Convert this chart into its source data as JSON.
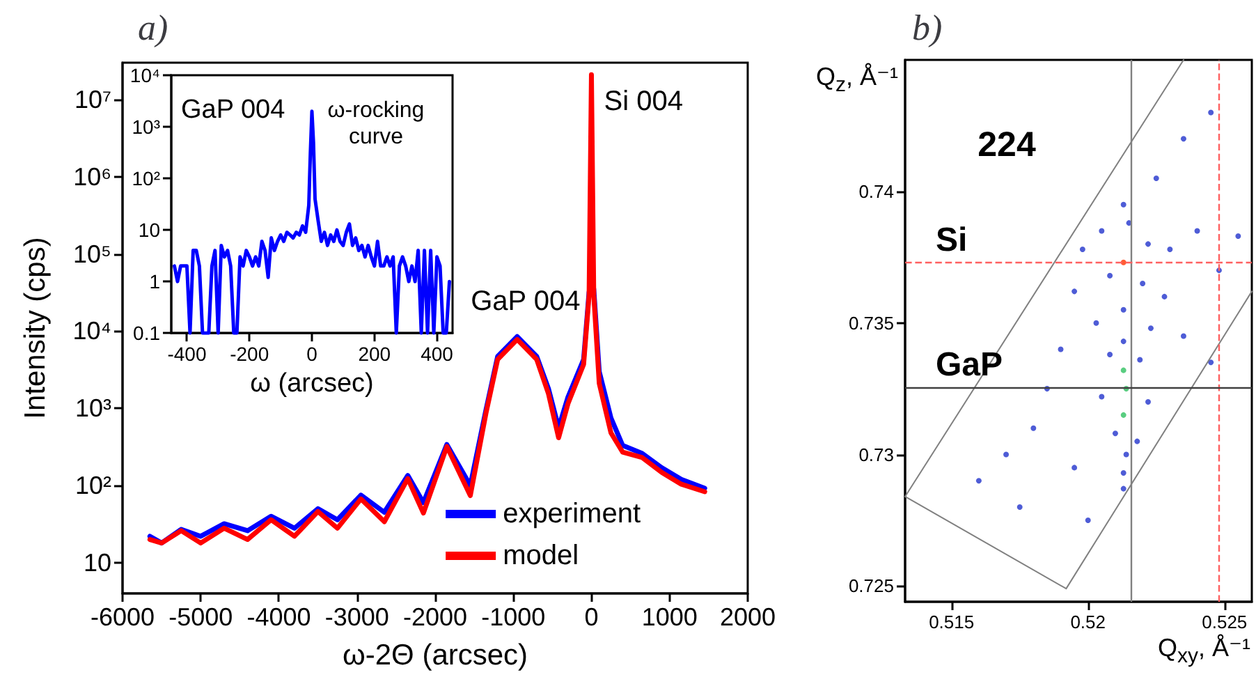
{
  "chart_data": [
    {
      "type": "line",
      "title": "a)",
      "xlabel": "ω-2Θ (arcsec)",
      "ylabel": "Intensity (cps)",
      "x": [
        -5650,
        -5500,
        -5250,
        -5000,
        -4700,
        -4400,
        -4100,
        -3800,
        -3500,
        -3250,
        -2950,
        -2650,
        -2350,
        -2150,
        -1850,
        -1550,
        -1350,
        -1200,
        -950,
        -700,
        -550,
        -420,
        -300,
        -100,
        -30,
        0,
        30,
        100,
        250,
        400,
        650,
        900,
        1150,
        1450
      ],
      "series": [
        {
          "name": "experiment",
          "color": "#0000ff",
          "values": [
            22,
            18,
            27,
            22,
            32,
            26,
            40,
            28,
            50,
            36,
            75,
            45,
            135,
            60,
            340,
            100,
            950,
            4700,
            8500,
            4700,
            1800,
            560,
            1400,
            4300,
            32000,
            null,
            35000,
            3000,
            750,
            330,
            260,
            170,
            120,
            92
          ]
        },
        {
          "name": "model",
          "color": "#ff0000",
          "values": [
            20,
            18,
            26,
            18,
            28,
            20,
            36,
            22,
            46,
            28,
            67,
            34,
            123,
            44,
            320,
            74,
            860,
            4300,
            7800,
            4300,
            1550,
            415,
            1150,
            3700,
            29000,
            21000000,
            29000,
            2100,
            480,
            270,
            230,
            148,
            104,
            83
          ]
        }
      ],
      "xlim": [
        -6000,
        2000
      ],
      "xticks": [
        -6000,
        -5000,
        -4000,
        -3000,
        -2000,
        -1000,
        0,
        1000,
        2000
      ],
      "ylim": [
        4,
        30000000
      ],
      "yticks": [
        10,
        {
          "value": 100,
          "label": "10²"
        },
        {
          "value": 1000,
          "label": "10³"
        },
        {
          "value": 10000,
          "label": "10⁴"
        },
        {
          "value": 100000,
          "label": "10⁵"
        },
        {
          "value": 1000000,
          "label": "10⁶"
        },
        {
          "value": 10000000,
          "label": "10⁷"
        }
      ],
      "log": true,
      "grid": false,
      "legend": "bottom right",
      "marker": "none",
      "line_style": "solid",
      "annotations": [
        {
          "text": "Si 004",
          "x": 0,
          "y": 20000000
        },
        {
          "text": "GaP 004",
          "x": -950,
          "y": 8500
        }
      ]
    },
    {
      "type": "line",
      "xlabel": "ω (arcsec)",
      "x": [
        -440,
        -430,
        -420,
        -400,
        -390,
        -380,
        -370,
        -360,
        -350,
        -340,
        -330,
        -320,
        -310,
        -300,
        -290,
        -280,
        -270,
        -260,
        -250,
        -240,
        -230,
        -220,
        -210,
        -200,
        -190,
        -180,
        -170,
        -160,
        -150,
        -140,
        -130,
        -120,
        -110,
        -100,
        -90,
        -80,
        -70,
        -60,
        -50,
        -40,
        -30,
        -20,
        -10,
        -5,
        0,
        5,
        10,
        20,
        30,
        40,
        50,
        60,
        70,
        80,
        90,
        100,
        110,
        120,
        130,
        140,
        150,
        160,
        170,
        180,
        190,
        200,
        210,
        220,
        230,
        240,
        250,
        260,
        270,
        280,
        290,
        300,
        310,
        320,
        330,
        340,
        350,
        360,
        370,
        380,
        390,
        400,
        410,
        420,
        430,
        440
      ],
      "series": [
        {
          "color": "#0000ff",
          "values": [
            2,
            1,
            2,
            2,
            0.1,
            4,
            4,
            2,
            0.1,
            0.1,
            0.1,
            2,
            4,
            0.1,
            5,
            3,
            4,
            2,
            0.1,
            0.1,
            3,
            2,
            4,
            3,
            2,
            3,
            2,
            6,
            4,
            1.2,
            7,
            4,
            6,
            8,
            6,
            9,
            8,
            7,
            9,
            8,
            12,
            9,
            30,
            300,
            2000,
            500,
            40,
            15,
            6,
            9,
            5,
            8,
            6,
            10,
            6,
            5,
            9,
            13,
            5,
            7,
            4,
            5,
            3,
            5,
            3,
            2,
            6,
            2,
            2,
            3,
            2,
            3,
            0.1,
            2,
            3,
            2,
            1,
            2,
            1,
            4,
            0.1,
            4,
            0.1,
            4,
            0.1,
            3,
            2,
            0.1,
            0.1,
            1
          ]
        }
      ],
      "xlim": [
        -450,
        450
      ],
      "xticks": [
        -400,
        -200,
        0,
        200,
        400
      ],
      "ylim": [
        0.1,
        10000
      ],
      "yticks": [
        0.1,
        1,
        10,
        {
          "value": 100,
          "label": "10²"
        },
        {
          "value": 1000,
          "label": "10³"
        },
        {
          "value": 10000,
          "label": "10⁴"
        }
      ],
      "log": true,
      "grid": false,
      "marker": "none",
      "line_style": "solid",
      "annotations": [
        "GaP 004",
        "ω-rocking\ncurve"
      ]
    },
    {
      "type": "scatter",
      "title": "b)",
      "xlabel": "Q$_{xy}$, Å⁻¹",
      "ylabel": "Q$_{z}$, Å⁻¹",
      "series": [
        {
          "color": "#2233cc",
          "x": [
            0.5213,
            0.5215,
            0.5205,
            0.5222,
            0.5198,
            0.523,
            0.5213,
            0.5208,
            0.522,
            0.5195,
            0.5228,
            0.5213,
            0.5203,
            0.5223,
            0.5213,
            0.5208,
            0.5219,
            0.5213,
            0.5214,
            0.5205,
            0.5222,
            0.5213,
            0.521,
            0.5218,
            0.5214,
            0.5213,
            0.5213,
            0.524,
            0.5248,
            0.5255,
            0.5235,
            0.5245,
            0.519,
            0.5185,
            0.518,
            0.517,
            0.516,
            0.5175,
            0.5195,
            0.52,
            0.5235,
            0.5245,
            0.5225
          ],
          "values": [
            0.7395,
            0.7388,
            0.7385,
            0.738,
            0.7378,
            0.7378,
            0.7373,
            0.7368,
            0.7365,
            0.7362,
            0.736,
            0.7355,
            0.735,
            0.7348,
            0.7343,
            0.7338,
            0.7336,
            0.7332,
            0.7325,
            0.7322,
            0.732,
            0.7315,
            0.7308,
            0.7305,
            0.73,
            0.7293,
            0.7287,
            0.7385,
            0.737,
            0.7383,
            0.7345,
            0.7335,
            0.734,
            0.7325,
            0.731,
            0.73,
            0.729,
            0.728,
            0.7295,
            0.7275,
            0.742,
            0.743,
            0.7405
          ],
          "colors": [
            "#2233cc",
            "#2233cc",
            "#2233cc",
            "#2233cc",
            "#2233cc",
            "#2233cc",
            "#ff3300",
            "#2233cc",
            "#2233cc",
            "#2233cc",
            "#2233cc",
            "#2233cc",
            "#2233cc",
            "#2233cc",
            "#2233cc",
            "#2233cc",
            "#2233cc",
            "#30c060",
            "#30c060",
            "#2233cc",
            "#2233cc",
            "#30c060",
            "#2233cc",
            "#2233cc",
            "#2233cc",
            "#2233cc",
            "#2233cc",
            "#2233cc",
            "#2233cc",
            "#2233cc",
            "#2233cc",
            "#2233cc",
            "#2233cc",
            "#2233cc",
            "#2233cc",
            "#2233cc",
            "#2233cc",
            "#2233cc",
            "#2233cc",
            "#2233cc",
            "#2233cc",
            "#2233cc",
            "#2233cc"
          ]
        },
        {
          "type": "line",
          "marker": "none",
          "color": "#808080",
          "x": [
            0.5235,
            0.5133,
            0.5192,
            0.526
          ],
          "values": [
            0.745,
            0.7284,
            0.7249,
            0.7362
          ]
        }
      ],
      "xlim": [
        0.5133,
        0.526
      ],
      "xticks": [
        0.515,
        0.52,
        0.525
      ],
      "ylim": [
        0.7244,
        0.745
      ],
      "yticks": [
        0.725,
        0.73,
        0.735,
        0.74
      ],
      "grid": false,
      "marker": "circle",
      "ref_lines": [
        {
          "axis": "x",
          "value": 0.52155,
          "color": "#808080",
          "line_style": "solid"
        },
        {
          "axis": "x",
          "value": 0.52481,
          "color": "#ff6060",
          "line_style": "dashed"
        },
        {
          "axis": "y",
          "value": 0.73729,
          "label": "Si",
          "color": "#ff6060",
          "line_style": "dashed"
        },
        {
          "axis": "y",
          "value": 0.73255,
          "label": "GaP",
          "color": "#404040",
          "line_style": "solid"
        }
      ],
      "annotations": [
        "224"
      ]
    }
  ]
}
